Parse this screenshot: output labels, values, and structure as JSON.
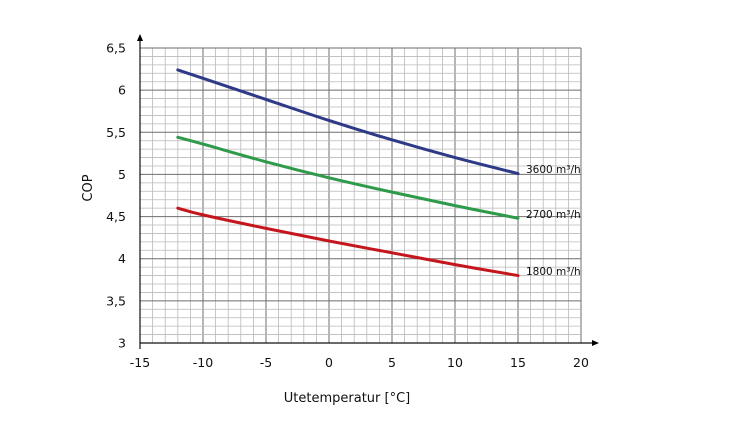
{
  "chart_data": {
    "type": "line",
    "title": "",
    "xlabel": "Utetemperatur [°C]",
    "ylabel": "COP",
    "xlim": [
      -15,
      20
    ],
    "ylim": [
      3,
      6.5
    ],
    "x_ticks": [
      -15,
      -10,
      -5,
      0,
      5,
      10,
      15,
      20
    ],
    "x_tick_labels": [
      "-15",
      "-10",
      "-5",
      "0",
      "5",
      "10",
      "15",
      "20"
    ],
    "y_ticks": [
      3,
      3.5,
      4,
      4.5,
      5,
      5.5,
      6,
      6.5
    ],
    "y_tick_labels": [
      "3",
      "3,5",
      "4",
      "4,5",
      "5",
      "5,5",
      "6",
      "6,5"
    ],
    "grid": true,
    "grid_minor_x_step": 1,
    "grid_minor_y_step": 0.1,
    "series": [
      {
        "name": "3600 m³/h",
        "color": "#2e3a87",
        "x": [
          -12,
          -10,
          -5,
          0,
          5,
          10,
          15
        ],
        "y": [
          6.24,
          6.14,
          5.89,
          5.64,
          5.41,
          5.2,
          5.01
        ]
      },
      {
        "name": "2700 m³/h",
        "color": "#2e9a4a",
        "x": [
          -12,
          -10,
          -5,
          0,
          5,
          10,
          15
        ],
        "y": [
          5.44,
          5.36,
          5.15,
          4.96,
          4.79,
          4.63,
          4.48
        ]
      },
      {
        "name": "1800 m³/h",
        "color": "#c4161c",
        "x": [
          -12,
          -10,
          -5,
          0,
          5,
          10,
          15
        ],
        "y": [
          4.6,
          4.52,
          4.36,
          4.21,
          4.07,
          3.93,
          3.8
        ]
      }
    ]
  }
}
